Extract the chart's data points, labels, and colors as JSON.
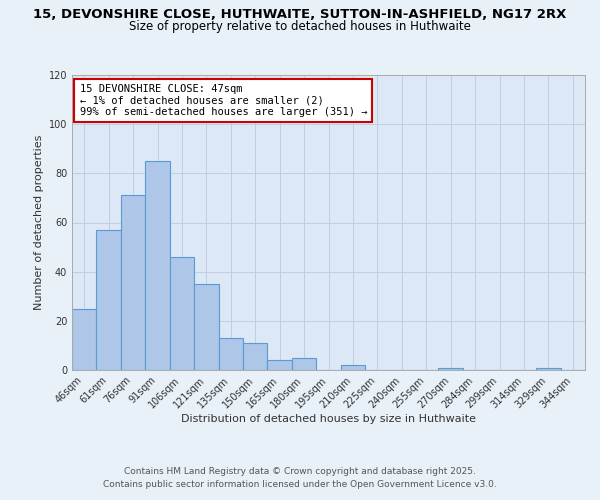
{
  "title_line1": "15, DEVONSHIRE CLOSE, HUTHWAITE, SUTTON-IN-ASHFIELD, NG17 2RX",
  "title_line2": "Size of property relative to detached houses in Huthwaite",
  "xlabel": "Distribution of detached houses by size in Huthwaite",
  "ylabel": "Number of detached properties",
  "categories": [
    "46sqm",
    "61sqm",
    "76sqm",
    "91sqm",
    "106sqm",
    "121sqm",
    "135sqm",
    "150sqm",
    "165sqm",
    "180sqm",
    "195sqm",
    "210sqm",
    "225sqm",
    "240sqm",
    "255sqm",
    "270sqm",
    "284sqm",
    "299sqm",
    "314sqm",
    "329sqm",
    "344sqm"
  ],
  "values": [
    25,
    57,
    71,
    85,
    46,
    35,
    13,
    11,
    4,
    5,
    0,
    2,
    0,
    0,
    0,
    1,
    0,
    0,
    0,
    1,
    0
  ],
  "bar_color": "#aec6e8",
  "bar_edge_color": "#5b9bd5",
  "background_color": "#e8f0f8",
  "plot_bg_color": "#dce8f5",
  "grid_color": "#c0cfe0",
  "ylim": [
    0,
    120
  ],
  "yticks": [
    0,
    20,
    40,
    60,
    80,
    100,
    120
  ],
  "annotation_text": "15 DEVONSHIRE CLOSE: 47sqm\n← 1% of detached houses are smaller (2)\n99% of semi-detached houses are larger (351) →",
  "annotation_box_edge": "#cc0000",
  "footer_line1": "Contains HM Land Registry data © Crown copyright and database right 2025.",
  "footer_line2": "Contains public sector information licensed under the Open Government Licence v3.0.",
  "title_fontsize": 9.5,
  "subtitle_fontsize": 8.5,
  "axis_label_fontsize": 8,
  "tick_fontsize": 7,
  "annotation_fontsize": 7.5,
  "footer_fontsize": 6.5
}
